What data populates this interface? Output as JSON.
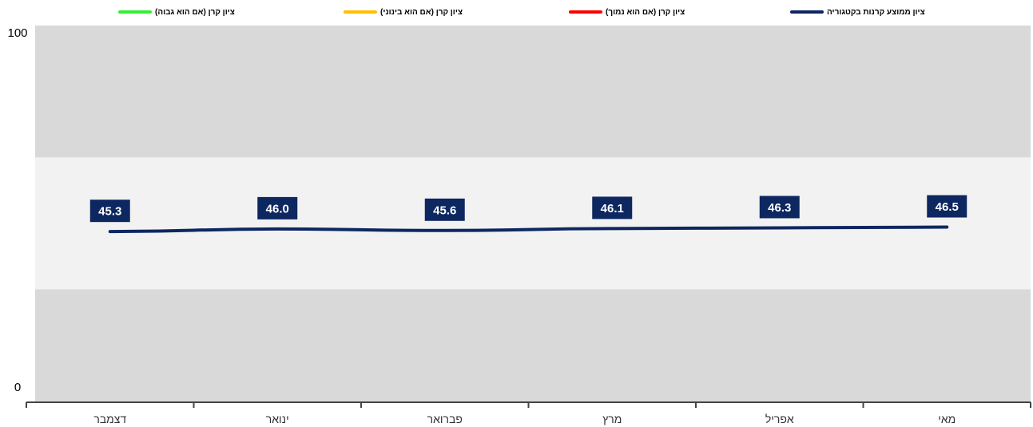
{
  "legend": {
    "items": [
      {
        "label": "ציון ממוצע קרנות בקטגוריה",
        "color": "#0d2760"
      },
      {
        "label": "ציון קרן (אם הוא נמוך)",
        "color": "#ff0000"
      },
      {
        "label": "ציון קרן (אם הוא בינוני)",
        "color": "#ffc000"
      },
      {
        "label": "ציון קרן (אם הוא גבוה)",
        "color": "#33ee33"
      }
    ]
  },
  "chart_data": {
    "type": "line",
    "categories": [
      "דצמבר",
      "ינואר",
      "פברואר",
      "מרץ",
      "אפריל",
      "מאי"
    ],
    "series": [
      {
        "name": "ציון ממוצע קרנות בקטגוריה",
        "values": [
          45.3,
          46.0,
          45.6,
          46.1,
          46.3,
          46.5
        ],
        "color": "#0d2760"
      }
    ],
    "data_labels": [
      "45.3",
      "46.0",
      "45.6",
      "46.1",
      "46.3",
      "46.5"
    ],
    "y_ticks": [
      "0",
      "100"
    ],
    "ylim": [
      0,
      100
    ],
    "bands": [
      {
        "from": 0,
        "to": 30,
        "color": "#d9d9d9"
      },
      {
        "from": 30,
        "to": 65,
        "color": "#f2f2f2"
      },
      {
        "from": 65,
        "to": 100,
        "color": "#d9d9d9"
      }
    ],
    "legend_position": "top",
    "grid": false
  }
}
